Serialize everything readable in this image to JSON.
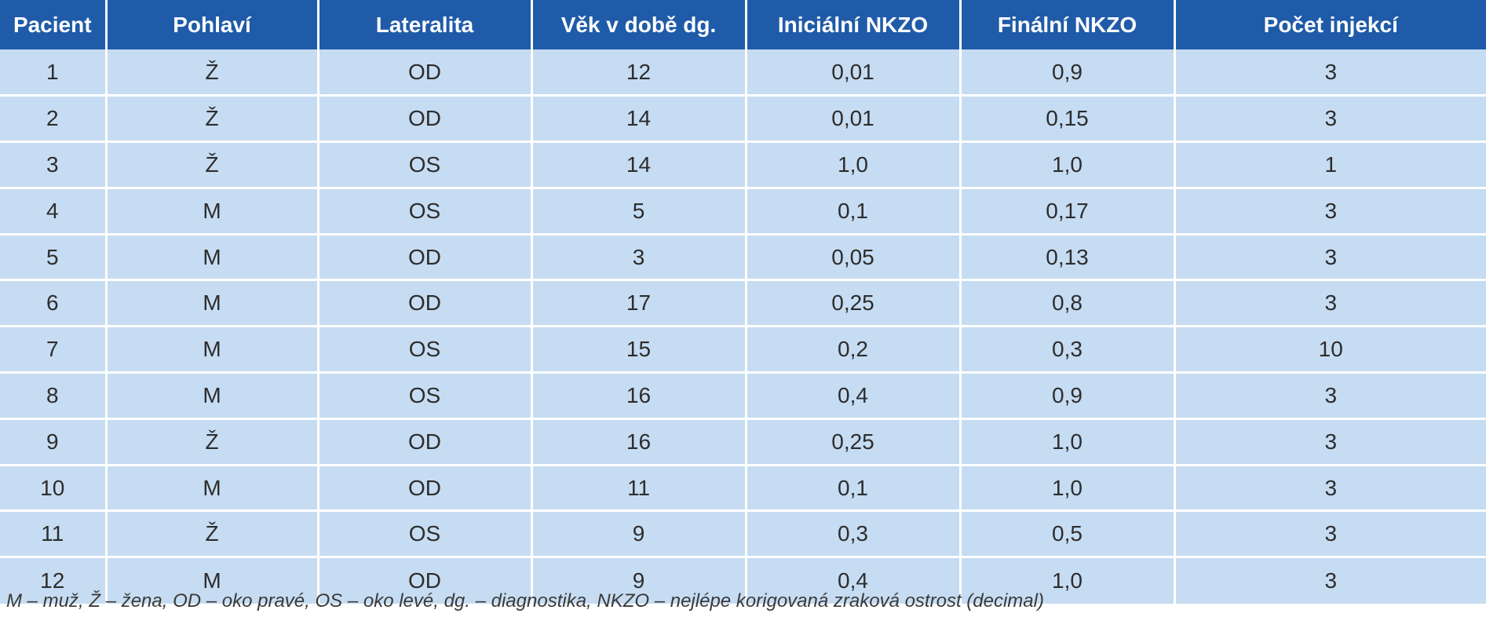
{
  "table": {
    "headers": [
      "Pacient",
      "Pohlaví",
      "Lateralita",
      "Věk v době dg.",
      "Iniciální NKZO",
      "Finální NKZO",
      "Počet injekcí"
    ],
    "rows": [
      [
        "1",
        "Ž",
        "OD",
        "12",
        "0,01",
        "0,9",
        "3"
      ],
      [
        "2",
        "Ž",
        "OD",
        "14",
        "0,01",
        "0,15",
        "3"
      ],
      [
        "3",
        "Ž",
        "OS",
        "14",
        "1,0",
        "1,0",
        "1"
      ],
      [
        "4",
        "M",
        "OS",
        "5",
        "0,1",
        "0,17",
        "3"
      ],
      [
        "5",
        "M",
        "OD",
        "3",
        "0,05",
        "0,13",
        "3"
      ],
      [
        "6",
        "M",
        "OD",
        "17",
        "0,25",
        "0,8",
        "3"
      ],
      [
        "7",
        "M",
        "OS",
        "15",
        "0,2",
        "0,3",
        "10"
      ],
      [
        "8",
        "M",
        "OS",
        "16",
        "0,4",
        "0,9",
        "3"
      ],
      [
        "9",
        "Ž",
        "OD",
        "16",
        "0,25",
        "1,0",
        "3"
      ],
      [
        "10",
        "M",
        "OD",
        "11",
        "0,1",
        "1,0",
        "3"
      ],
      [
        "11",
        "Ž",
        "OS",
        "9",
        "0,3",
        "0,5",
        "3"
      ],
      [
        "12",
        "M",
        "OD",
        "9",
        "0,4",
        "1,0",
        "3"
      ]
    ]
  },
  "footnote": "M – muž, Ž – žena, OD – oko pravé, OS – oko levé, dg. – diagnostika, NKZO – nejlépe korigovaná zraková ostrost (decimal)",
  "colors": {
    "header_bg": "#1f5ba8",
    "header_text": "#ffffff",
    "row_bg": "#c6dcf2",
    "cell_text": "#2d2d2d"
  }
}
